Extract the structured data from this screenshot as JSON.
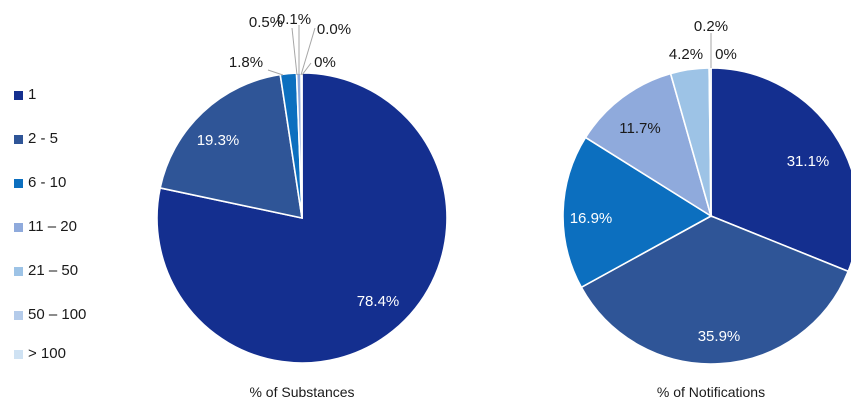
{
  "legend": {
    "items": [
      {
        "label": "1",
        "color": "#142f8f"
      },
      {
        "label": "2 - 5",
        "color": "#2f5597"
      },
      {
        "label": "6 - 10",
        "color": "#0c6fbf"
      },
      {
        "label": "11 – 20",
        "color": "#8faadc"
      },
      {
        "label": "21 – 50",
        "color": "#9dc3e6"
      },
      {
        "label": "50 – 100",
        "color": "#b4cbea"
      },
      {
        "label": "> 100",
        "color": "#cfe2f3"
      }
    ]
  },
  "chart_data": [
    {
      "type": "pie",
      "title": "% of Substances",
      "categories": [
        "1",
        "2 - 5",
        "6 - 10",
        "11 – 20",
        "21 – 50",
        "50 – 100",
        "> 100"
      ],
      "values": [
        78.4,
        19.3,
        1.8,
        0.5,
        0.1,
        0.0,
        0
      ],
      "data_labels": [
        "78.4%",
        "19.3%",
        "1.8%",
        "0.5%",
        "0.1%",
        "0.0%",
        "0%"
      ],
      "start": "12 o'clock",
      "direction": "clockwise",
      "legend_position": "left"
    },
    {
      "type": "pie",
      "title": "% of Notifications",
      "categories": [
        "1",
        "2 - 5",
        "6 - 10",
        "11 – 20",
        "21 – 50",
        "50 – 100",
        "> 100"
      ],
      "values": [
        31.1,
        35.9,
        16.9,
        11.7,
        4.2,
        0.2,
        0
      ],
      "data_labels": [
        "31.1%",
        "35.9%",
        "16.9%",
        "11.7%",
        "4.2%",
        "0.2%",
        "0%"
      ],
      "start": "12 o'clock",
      "direction": "clockwise",
      "legend_position": "left"
    }
  ]
}
